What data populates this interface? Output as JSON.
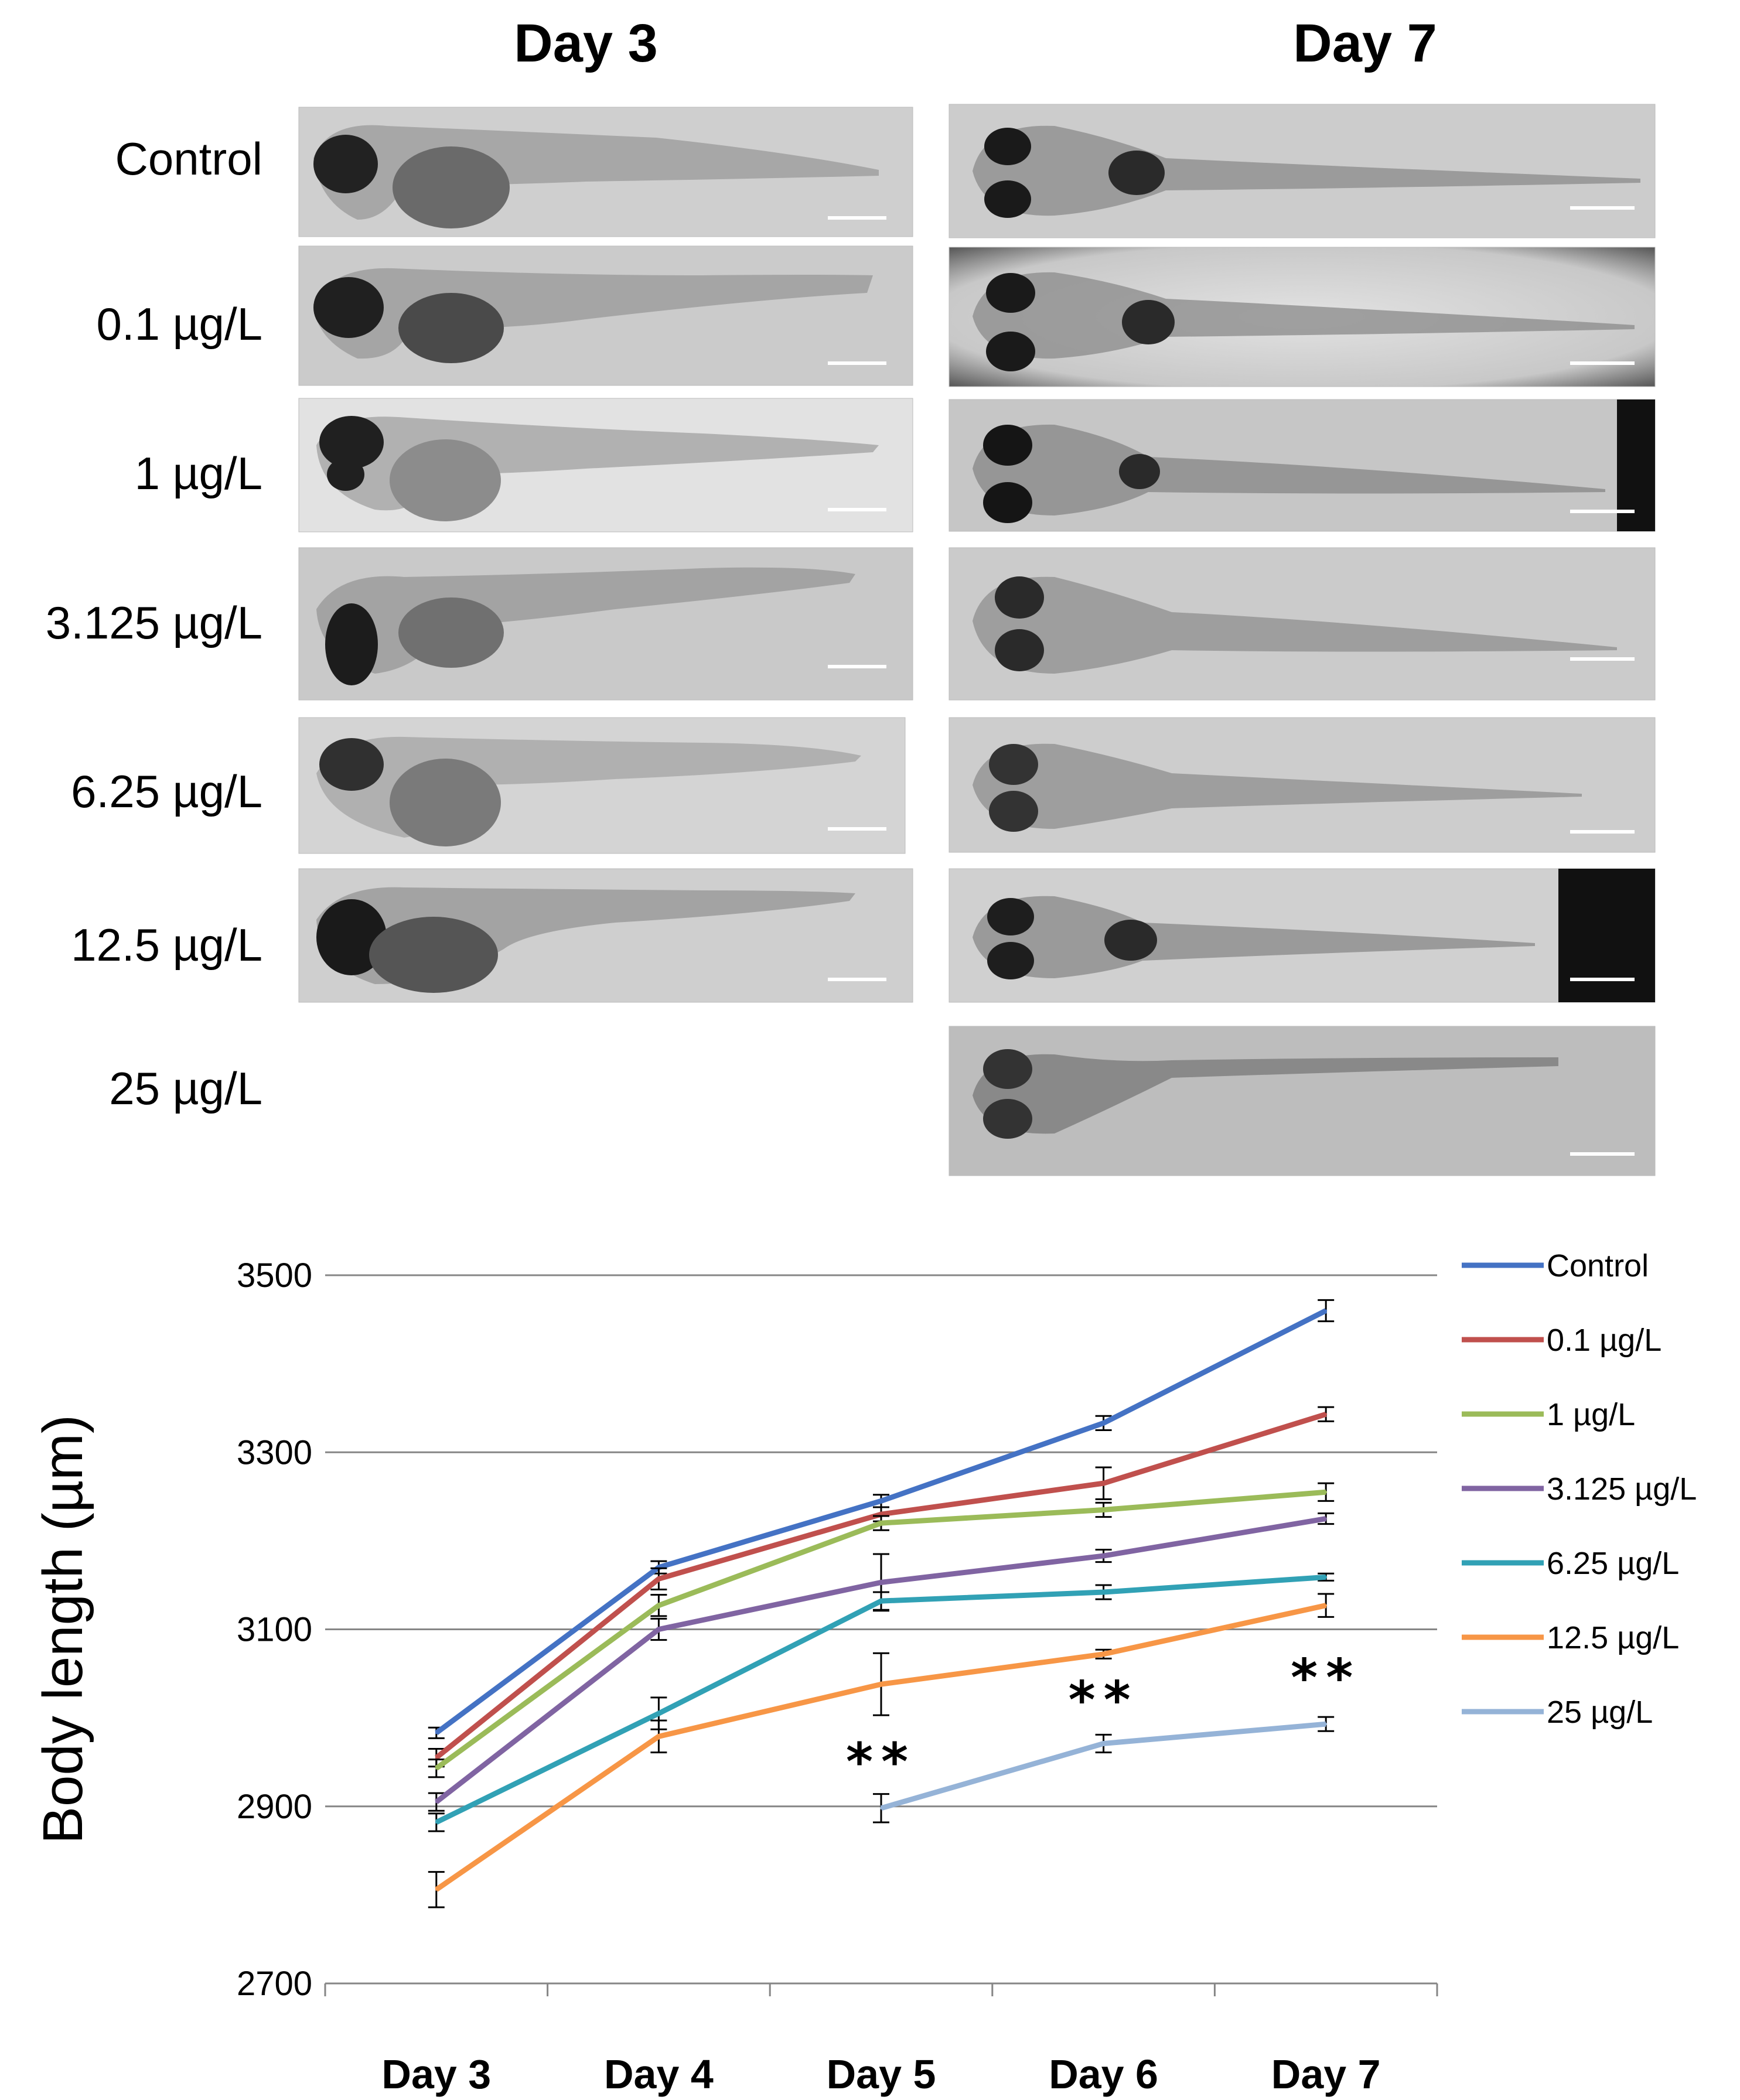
{
  "panel": {
    "columns": [
      "Day 3",
      "Day 7"
    ],
    "rows": [
      "Control",
      "0.1 µg/L",
      "1 µg/L",
      "3.125 µg/L",
      "6.25 µg/L",
      "12.5 µg/L",
      "25 µg/L"
    ]
  },
  "chart_data": {
    "type": "line",
    "title": "",
    "xlabel": "",
    "ylabel": "Body length (µm)",
    "categories": [
      "Day 3",
      "Day 4",
      "Day 5",
      "Day 6",
      "Day 7"
    ],
    "ylim": [
      2700,
      3500
    ],
    "yticks": [
      2700,
      2900,
      3100,
      3300,
      3500
    ],
    "grid": true,
    "legend_position": "right",
    "series": [
      {
        "name": "Control",
        "color": "#4472C4",
        "values": [
          2983,
          3170,
          3245,
          3333,
          3460
        ],
        "errors": [
          6,
          7,
          7,
          8,
          12
        ]
      },
      {
        "name": "0.1 µg/L",
        "color": "#C0504D",
        "values": [
          2955,
          3157,
          3230,
          3265,
          3343
        ],
        "errors": [
          10,
          12,
          8,
          18,
          8
        ]
      },
      {
        "name": "1 µg/L",
        "color": "#9BBB59",
        "values": [
          2943,
          3127,
          3220,
          3235,
          3255
        ],
        "errors": [
          10,
          12,
          8,
          8,
          10
        ]
      },
      {
        "name": "3.125 µg/L",
        "color": "#8064A2",
        "values": [
          2905,
          3100,
          3153,
          3183,
          3225
        ],
        "errors": [
          10,
          12,
          32,
          7,
          6
        ]
      },
      {
        "name": "6.25 µg/L",
        "color": "#31A1B5",
        "values": [
          2882,
          3005,
          3132,
          3142,
          3159
        ],
        "errors": [
          10,
          18,
          10,
          8,
          4
        ]
      },
      {
        "name": "12.5 µg/L",
        "color": "#F79646",
        "values": [
          2806,
          2979,
          3038,
          3072,
          3127
        ],
        "errors": [
          20,
          18,
          35,
          5,
          13
        ]
      },
      {
        "name": "25 µg/L",
        "color": "#95B3D7",
        "values": [
          null,
          null,
          2898,
          2971,
          2993
        ],
        "errors": [
          0,
          0,
          16,
          10,
          8
        ]
      }
    ],
    "annotations": [
      {
        "text": "**",
        "category": "Day 5",
        "y": 2950
      },
      {
        "text": "**",
        "category": "Day 6",
        "y": 3020
      },
      {
        "text": "**",
        "category": "Day 7",
        "y": 3045
      }
    ]
  }
}
